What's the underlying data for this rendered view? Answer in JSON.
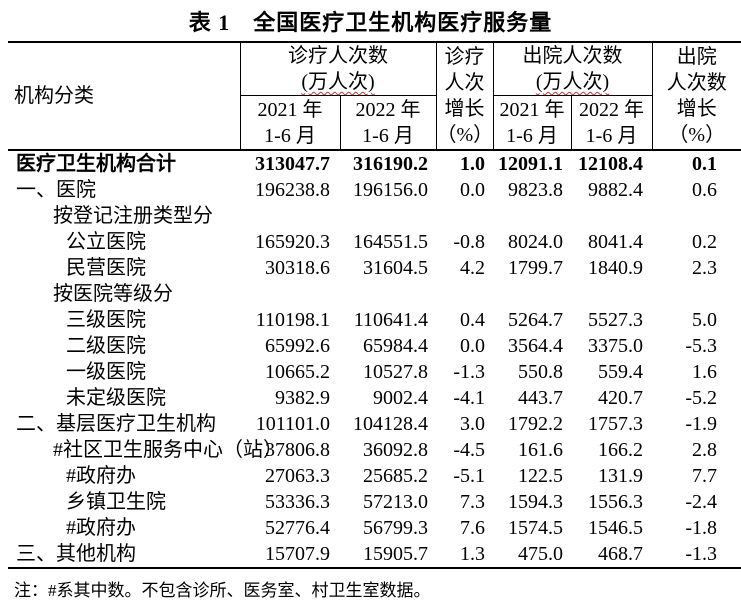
{
  "title": "表 1　全国医疗卫生机构医疗服务量",
  "colors": {
    "background": "#ffffff",
    "text": "#000000",
    "border": "#000000",
    "spellcheck_squiggle": "#cc3333"
  },
  "table": {
    "header": {
      "org": "机构分类",
      "visits_group": "诊疗人次数",
      "visits_unit": "(万人次)",
      "visits_growth": "诊疗\n人次\n增长\n（%）",
      "discharge_group": "出院人次数",
      "discharge_unit": "(万人次)",
      "discharge_growth": "出院\n人次数\n增长\n（%）",
      "y2021": "2021 年\n1-6 月",
      "y2022": "2022 年\n1-6 月"
    },
    "rows": [
      {
        "label": "医疗卫生机构合计",
        "indent": 0,
        "bold": true,
        "values": [
          "313047.7",
          "316190.2",
          "1.0",
          "12091.1",
          "12108.4",
          "0.1"
        ]
      },
      {
        "label": "一、医院",
        "indent": 0,
        "bold": false,
        "values": [
          "196238.8",
          "196156.0",
          "0.0",
          "9823.8",
          "9882.4",
          "0.6"
        ]
      },
      {
        "label": "按登记注册类型分",
        "indent": 1,
        "bold": false,
        "values": [
          "",
          "",
          "",
          "",
          "",
          ""
        ]
      },
      {
        "label": "公立医院",
        "indent": 2,
        "bold": false,
        "values": [
          "165920.3",
          "164551.5",
          "-0.8",
          "8024.0",
          "8041.4",
          "0.2"
        ]
      },
      {
        "label": "民营医院",
        "indent": 2,
        "bold": false,
        "values": [
          "30318.6",
          "31604.5",
          "4.2",
          "1799.7",
          "1840.9",
          "2.3"
        ]
      },
      {
        "label": "按医院等级分",
        "indent": 1,
        "bold": false,
        "values": [
          "",
          "",
          "",
          "",
          "",
          ""
        ]
      },
      {
        "label": "三级医院",
        "indent": 2,
        "bold": false,
        "values": [
          "110198.1",
          "110641.4",
          "0.4",
          "5264.7",
          "5527.3",
          "5.0"
        ]
      },
      {
        "label": "二级医院",
        "indent": 2,
        "bold": false,
        "values": [
          "65992.6",
          "65984.4",
          "0.0",
          "3564.4",
          "3375.0",
          "-5.3"
        ]
      },
      {
        "label": "一级医院",
        "indent": 2,
        "bold": false,
        "values": [
          "10665.2",
          "10527.8",
          "-1.3",
          "550.8",
          "559.4",
          "1.6"
        ]
      },
      {
        "label": "未定级医院",
        "indent": 2,
        "bold": false,
        "values": [
          "9382.9",
          "9002.4",
          "-4.1",
          "443.7",
          "420.7",
          "-5.2"
        ]
      },
      {
        "label": "二、基层医疗卫生机构",
        "indent": 0,
        "bold": false,
        "values": [
          "101101.0",
          "104128.4",
          "3.0",
          "1792.2",
          "1757.3",
          "-1.9"
        ]
      },
      {
        "label": "#社区卫生服务中心（站）",
        "indent": 1,
        "bold": false,
        "values": [
          "37806.8",
          "36092.8",
          "-4.5",
          "161.6",
          "166.2",
          "2.8"
        ]
      },
      {
        "label": "#政府办",
        "indent": 2,
        "bold": false,
        "values": [
          "27063.3",
          "25685.2",
          "-5.1",
          "122.5",
          "131.9",
          "7.7"
        ]
      },
      {
        "label": "乡镇卫生院",
        "indent": 2,
        "bold": false,
        "values": [
          "53336.3",
          "57213.0",
          "7.3",
          "1594.3",
          "1556.3",
          "-2.4"
        ]
      },
      {
        "label": "#政府办",
        "indent": 2,
        "bold": false,
        "values": [
          "52776.4",
          "56799.3",
          "7.6",
          "1574.5",
          "1546.5",
          "-1.8"
        ]
      },
      {
        "label": "三、其他机构",
        "indent": 0,
        "bold": false,
        "values": [
          "15707.9",
          "15905.7",
          "1.3",
          "475.0",
          "468.7",
          "-1.3"
        ]
      }
    ]
  },
  "note": "注：#系其中数。不包含诊所、医务室、村卫生室数据。"
}
